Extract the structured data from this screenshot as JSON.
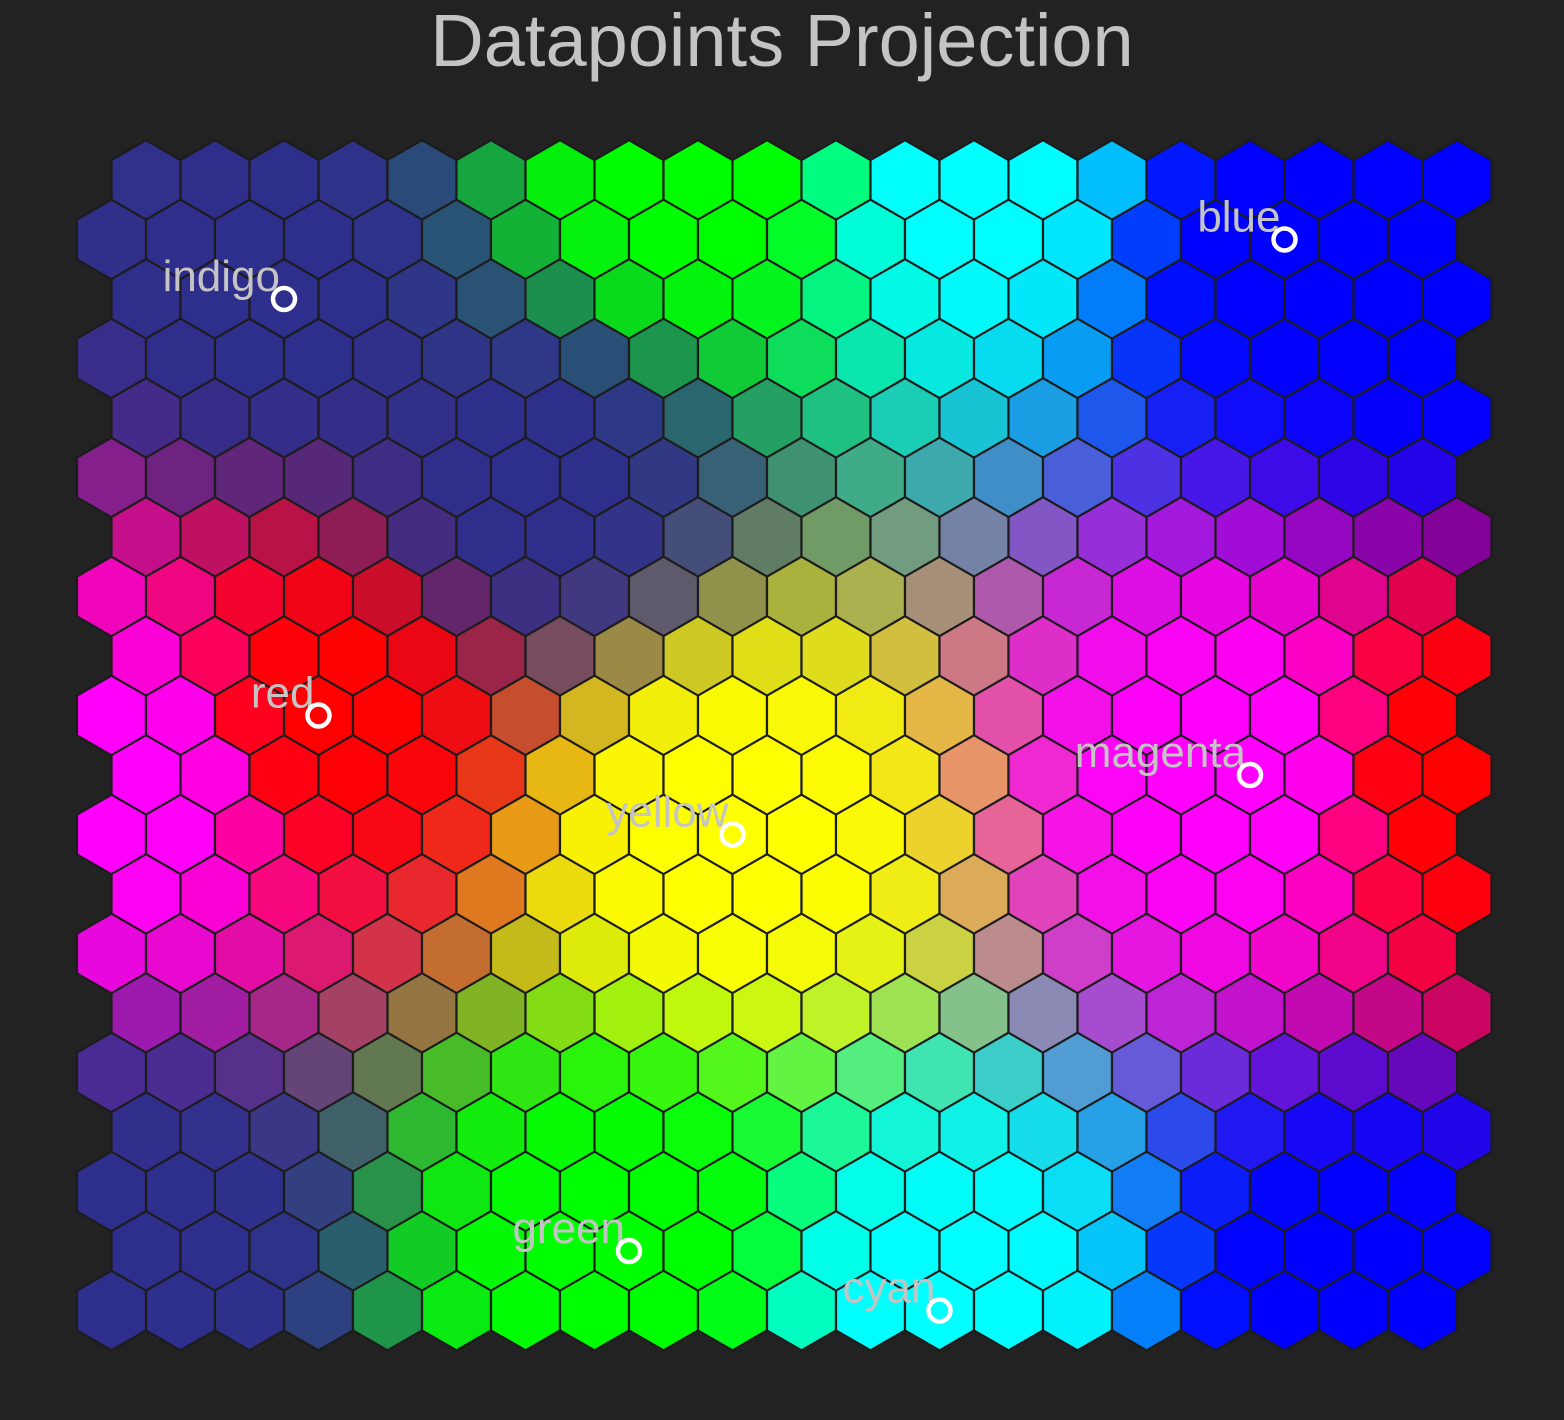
{
  "chart_data": {
    "type": "heatmap",
    "title": "Datapoints Projection",
    "grid": {
      "columns": 20,
      "rows": 20
    },
    "anchor_colors": {
      "red": "#ff0000",
      "green": "#00ff00",
      "blue": "#0000ff",
      "yellow": "#ffff00",
      "magenta": "#ff00ff",
      "cyan": "#00ffff",
      "indigo": "#2e2e8c",
      "background": "#222222"
    },
    "points": [
      {
        "label": "indigo",
        "col": 2,
        "row": 2,
        "color": "#2e2e8c"
      },
      {
        "label": "blue",
        "col": 17,
        "row": 1,
        "color": "#0000ff"
      },
      {
        "label": "red",
        "col": 3,
        "row": 9,
        "color": "#ff0000"
      },
      {
        "label": "magenta",
        "col": 16,
        "row": 10,
        "color": "#ff00ff"
      },
      {
        "label": "yellow",
        "col": 9,
        "row": 11,
        "color": "#ffff00"
      },
      {
        "label": "green",
        "col": 7,
        "row": 18,
        "color": "#00ff00"
      },
      {
        "label": "cyan",
        "col": 12,
        "row": 19,
        "color": "#00ffff"
      }
    ]
  }
}
